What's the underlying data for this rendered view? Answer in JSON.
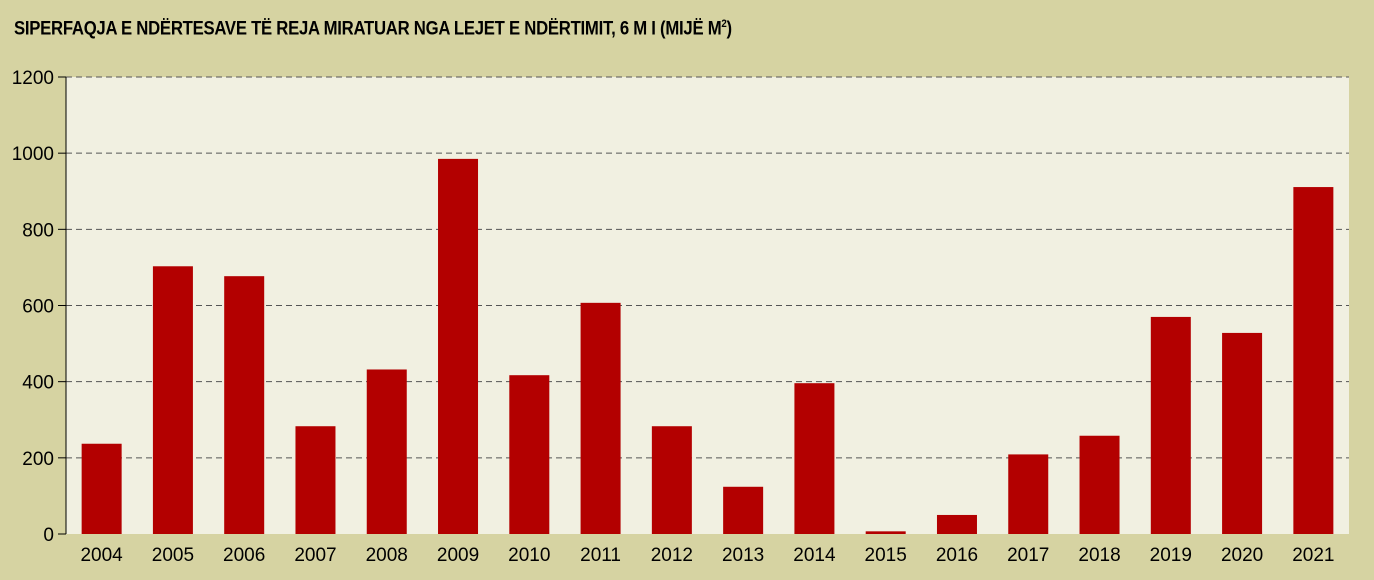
{
  "chart_data": {
    "type": "bar",
    "title_main": "SIPERFAQJA E NDËRTESAVE TË REJA MIRATUAR NGA LEJET E NDËRTIMIT, 6 M I (MIJË M",
    "title_sup": "2",
    "title_end": ")",
    "categories": [
      "2004",
      "2005",
      "2006",
      "2007",
      "2008",
      "2009",
      "2010",
      "2011",
      "2012",
      "2013",
      "2014",
      "2015",
      "2016",
      "2017",
      "2018",
      "2019",
      "2020",
      "2021"
    ],
    "values": [
      237,
      703,
      677,
      283,
      432,
      985,
      417,
      607,
      283,
      124,
      396,
      7,
      50,
      209,
      258,
      570,
      528,
      911
    ],
    "ylim": [
      0,
      1200
    ],
    "yticks": [
      0,
      200,
      400,
      600,
      800,
      1000,
      1200
    ],
    "grid": true,
    "bar_color": "#b30000",
    "plot_bg": "#f1f0e1",
    "page_bg": "#d6d3a2"
  }
}
